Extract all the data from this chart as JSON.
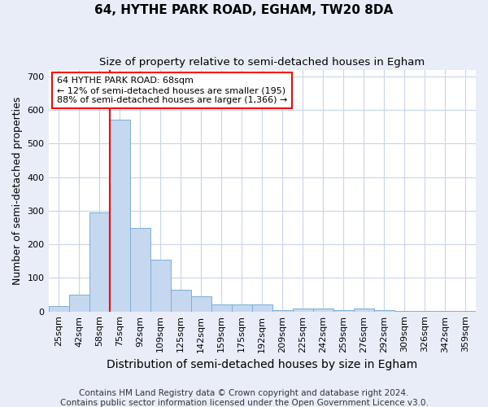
{
  "title": "64, HYTHE PARK ROAD, EGHAM, TW20 8DA",
  "subtitle": "Size of property relative to semi-detached houses in Egham",
  "xlabel": "Distribution of semi-detached houses by size in Egham",
  "ylabel": "Number of semi-detached properties",
  "categories": [
    "25sqm",
    "42sqm",
    "58sqm",
    "75sqm",
    "92sqm",
    "109sqm",
    "125sqm",
    "142sqm",
    "159sqm",
    "175sqm",
    "192sqm",
    "209sqm",
    "225sqm",
    "242sqm",
    "259sqm",
    "276sqm",
    "292sqm",
    "309sqm",
    "326sqm",
    "342sqm",
    "359sqm"
  ],
  "values": [
    15,
    50,
    295,
    570,
    250,
    155,
    65,
    45,
    20,
    20,
    20,
    5,
    10,
    10,
    5,
    10,
    3,
    2,
    1,
    1,
    1
  ],
  "bar_color": "#c5d8f0",
  "bar_edge_color": "#7aafd4",
  "annotation_text": "64 HYTHE PARK ROAD: 68sqm\n← 12% of semi-detached houses are smaller (195)\n88% of semi-detached houses are larger (1,366) →",
  "annotation_box_color": "white",
  "annotation_box_edge_color": "red",
  "vline_color": "red",
  "vline_x_index": 3,
  "ylim": [
    0,
    720
  ],
  "yticks": [
    0,
    100,
    200,
    300,
    400,
    500,
    600,
    700
  ],
  "footer": "Contains HM Land Registry data © Crown copyright and database right 2024.\nContains public sector information licensed under the Open Government Licence v3.0.",
  "background_color": "#e8edf8",
  "plot_background_color": "#ffffff",
  "grid_color": "#c8d4e8",
  "title_fontsize": 11,
  "subtitle_fontsize": 9.5,
  "xlabel_fontsize": 10,
  "ylabel_fontsize": 9,
  "tick_fontsize": 8,
  "footer_fontsize": 7.5,
  "annotation_fontsize": 8
}
